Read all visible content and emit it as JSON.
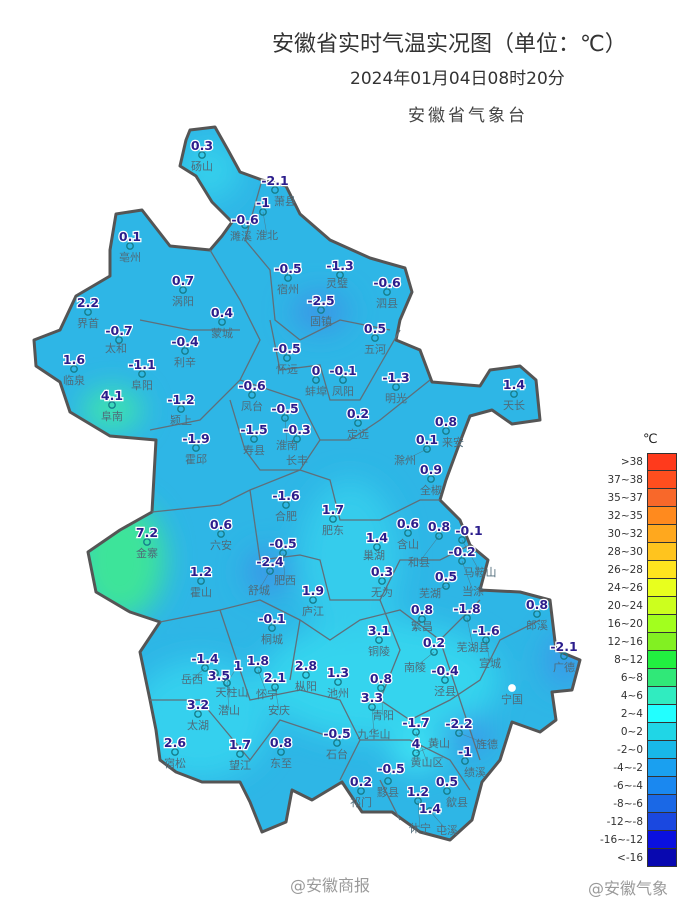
{
  "header": {
    "title": "安徽省实时气温实况图（单位：℃）",
    "datetime": "2024年01月04日08时20分",
    "organization": "安徽省气象台"
  },
  "legend": {
    "unit": "℃",
    "items": [
      {
        "label": ">38",
        "color": "#ff3a1c"
      },
      {
        "label": "37~38",
        "color": "#ff4e1e"
      },
      {
        "label": "35~37",
        "color": "#f8682a"
      },
      {
        "label": "32~35",
        "color": "#ff8a1e"
      },
      {
        "label": "30~32",
        "color": "#ffa81e"
      },
      {
        "label": "28~30",
        "color": "#ffc41e"
      },
      {
        "label": "26~28",
        "color": "#ffe41e"
      },
      {
        "label": "24~26",
        "color": "#e8ff1e"
      },
      {
        "label": "20~24",
        "color": "#ccff1e"
      },
      {
        "label": "16~20",
        "color": "#a2ff1e"
      },
      {
        "label": "12~16",
        "color": "#82f022"
      },
      {
        "label": "8~12",
        "color": "#22f040"
      },
      {
        "label": "6~8",
        "color": "#30e878"
      },
      {
        "label": "4~6",
        "color": "#30ecc0"
      },
      {
        "label": "2~4",
        "color": "#22ffff"
      },
      {
        "label": "0~2",
        "color": "#20d6e6"
      },
      {
        "label": "-2~0",
        "color": "#18b8e8"
      },
      {
        "label": "-4~-2",
        "color": "#1aa0f0"
      },
      {
        "label": "-6~-4",
        "color": "#1a88f0"
      },
      {
        "label": "-8~-6",
        "color": "#1a68e6"
      },
      {
        "label": "-12~-8",
        "color": "#1a48e0"
      },
      {
        "label": "-16~-12",
        "color": "#0a10e0"
      },
      {
        "label": "<-16",
        "color": "#0808b0"
      }
    ]
  },
  "stations": [
    {
      "name": "砀山",
      "value": "0.3"
    },
    {
      "name": "萧县",
      "value": "-2.1"
    },
    {
      "name": "淮北",
      "value": "-1"
    },
    {
      "name": "濉溪",
      "value": "-0.6"
    },
    {
      "name": "亳州",
      "value": "0.1"
    },
    {
      "name": "涡阳",
      "value": "0.7"
    },
    {
      "name": "蒙城",
      "value": "0.4"
    },
    {
      "name": "宿州",
      "value": "-0.5"
    },
    {
      "name": "灵璧",
      "value": "-1.3"
    },
    {
      "name": "泗县",
      "value": "-0.6"
    },
    {
      "name": "固镇",
      "value": "-2.5"
    },
    {
      "name": "五河",
      "value": "0.5"
    },
    {
      "name": "界首",
      "value": "2.2"
    },
    {
      "name": "太和",
      "value": "-0.7"
    },
    {
      "name": "利辛",
      "value": "-0.4"
    },
    {
      "name": "临泉",
      "value": "1.6"
    },
    {
      "name": "阜阳",
      "value": "-1.1"
    },
    {
      "name": "阜南",
      "value": "4.1"
    },
    {
      "name": "颍上",
      "value": "-1.2"
    },
    {
      "name": "怀远",
      "value": "-0.5"
    },
    {
      "name": "蚌埠",
      "value": "0"
    },
    {
      "name": "凤阳",
      "value": "-0.1"
    },
    {
      "name": "明光",
      "value": "-1.3"
    },
    {
      "name": "凤台",
      "value": "-0.6"
    },
    {
      "name": "淮南",
      "value": "-0.5"
    },
    {
      "name": "寿县",
      "value": "-1.5"
    },
    {
      "name": "长丰",
      "value": "-0.3"
    },
    {
      "name": "定远",
      "value": "0.2"
    },
    {
      "name": "霍邱",
      "value": "-1.9"
    },
    {
      "name": "天长",
      "value": "1.4"
    },
    {
      "name": "来安",
      "value": "0.8"
    },
    {
      "name": "滁州",
      "value": "0.1"
    },
    {
      "name": "全椒",
      "value": "0.9"
    },
    {
      "name": "合肥",
      "value": "-1.6"
    },
    {
      "name": "肥东",
      "value": "1.7"
    },
    {
      "name": "含山",
      "value": "0.6"
    },
    {
      "name": "和县",
      "value": "0.8"
    },
    {
      "name": "马鞍山",
      "value": "-0.1"
    },
    {
      "name": "当涂",
      "value": "-0.2"
    },
    {
      "name": "巢湖",
      "value": "1.4"
    },
    {
      "name": "无为",
      "value": "0.3"
    },
    {
      "name": "芜湖",
      "value": "0.5"
    },
    {
      "name": "六安",
      "value": "0.6"
    },
    {
      "name": "金寨",
      "value": "7.2"
    },
    {
      "name": "肥西",
      "value": "-0.5"
    },
    {
      "name": "舒城",
      "value": "-2.4"
    },
    {
      "name": "霍山",
      "value": "1.2"
    },
    {
      "name": "庐江",
      "value": "1.9"
    },
    {
      "name": "桐城",
      "value": "-0.1"
    },
    {
      "name": "铜陵",
      "value": "3.1"
    },
    {
      "name": "繁昌",
      "value": "0.8"
    },
    {
      "name": "南陵",
      "value": "0.2"
    },
    {
      "name": "芜湖县",
      "value": "-1.8"
    },
    {
      "name": "宣城",
      "value": "-1.6"
    },
    {
      "name": "郎溪",
      "value": "0.8"
    },
    {
      "name": "广德",
      "value": "-2.1"
    },
    {
      "name": "泾县",
      "value": "-0.4"
    },
    {
      "name": "宁国",
      "value": ""
    },
    {
      "name": "岳西",
      "value": "-1.4"
    },
    {
      "name": "天柱山",
      "value": "3.5"
    },
    {
      "name": "潜山",
      "value": "1"
    },
    {
      "name": "怀宁",
      "value": "1.8"
    },
    {
      "name": "安庆",
      "value": "2.1"
    },
    {
      "name": "枞阳",
      "value": "2.8"
    },
    {
      "name": "池州",
      "value": "1.3"
    },
    {
      "name": "青阳",
      "value": "0.8"
    },
    {
      "name": "九华山",
      "value": "3.3"
    },
    {
      "name": "太湖",
      "value": "3.2"
    },
    {
      "name": "宿松",
      "value": "2.6"
    },
    {
      "name": "望江",
      "value": "1.7"
    },
    {
      "name": "东至",
      "value": "0.8"
    },
    {
      "name": "石台",
      "value": "-0.5"
    },
    {
      "name": "黄山区",
      "value": "-1.7"
    },
    {
      "name": "黄山",
      "value": "4"
    },
    {
      "name": "旌德",
      "value": "-2.2"
    },
    {
      "name": "绩溪",
      "value": "-1"
    },
    {
      "name": "祁门",
      "value": "0.2"
    },
    {
      "name": "黟县",
      "value": "-0.5"
    },
    {
      "name": "歙县",
      "value": "0.5"
    },
    {
      "name": "休宁",
      "value": "1.2"
    },
    {
      "name": "屯溪",
      "value": "1.4"
    }
  ],
  "watermarks": [
    "@安徽商报",
    "@安徽气象"
  ]
}
